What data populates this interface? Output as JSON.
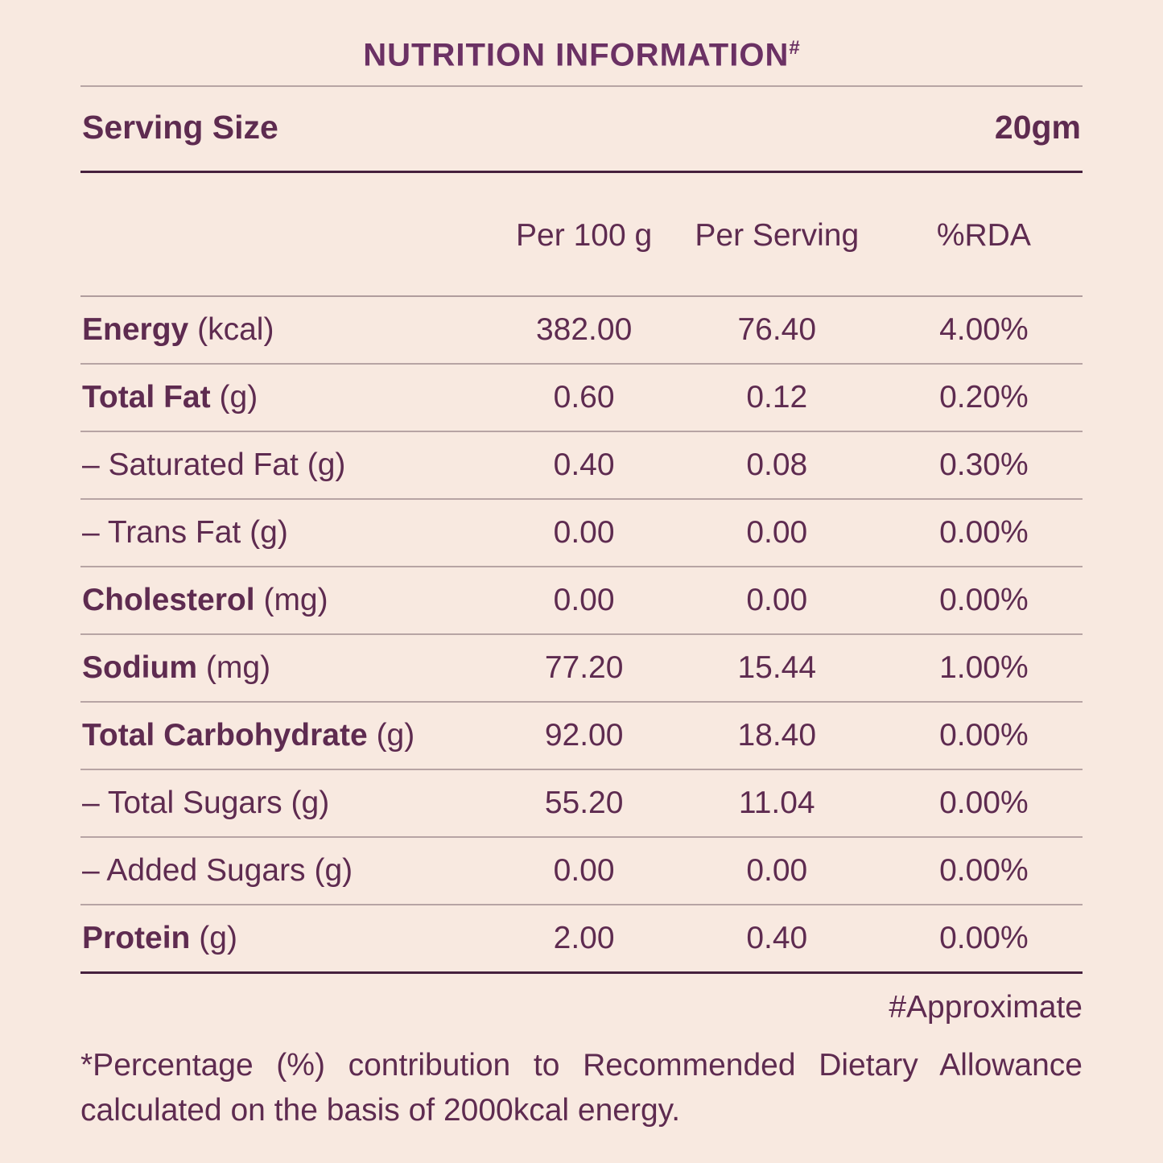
{
  "colors": {
    "background": "#f8e9e0",
    "text": "#5e2b50",
    "title": "#6b3164",
    "rule_thin": "#b7a4a4",
    "rule_dark": "#46203e"
  },
  "title": {
    "text": "NUTRITION INFORMATION",
    "superscript": "#"
  },
  "serving": {
    "label": "Serving Size",
    "value": "20gm"
  },
  "columns": [
    "Per 100 g",
    "Per Serving",
    "%RDA"
  ],
  "rows": [
    {
      "name": "Energy",
      "unit": "(kcal)",
      "per_100g": "382.00",
      "per_serving": "76.40",
      "rda": "4.00%"
    },
    {
      "name": "Total Fat",
      "unit": "(g)",
      "per_100g": "0.60",
      "per_serving": "0.12",
      "rda": "0.20%"
    },
    {
      "name": "– Saturated Fat",
      "unit": "(g)",
      "per_100g": "0.40",
      "per_serving": "0.08",
      "rda": "0.30%"
    },
    {
      "name": "– Trans Fat",
      "unit": "(g)",
      "per_100g": "0.00",
      "per_serving": "0.00",
      "rda": "0.00%"
    },
    {
      "name": "Cholesterol",
      "unit": "(mg)",
      "per_100g": "0.00",
      "per_serving": "0.00",
      "rda": "0.00%"
    },
    {
      "name": "Sodium",
      "unit": "(mg)",
      "per_100g": "77.20",
      "per_serving": "15.44",
      "rda": "1.00%"
    },
    {
      "name": "Total Carbohydrate",
      "unit": "(g)",
      "per_100g": "92.00",
      "per_serving": "18.40",
      "rda": "0.00%"
    },
    {
      "name": "– Total Sugars",
      "unit": "(g)",
      "per_100g": "55.20",
      "per_serving": "11.04",
      "rda": "0.00%"
    },
    {
      "name": "– Added Sugars",
      "unit": "(g)",
      "per_100g": "0.00",
      "per_serving": "0.00",
      "rda": "0.00%"
    },
    {
      "name": "Protein",
      "unit": "(g)",
      "per_100g": "2.00",
      "per_serving": "0.40",
      "rda": "0.00%"
    }
  ],
  "footnotes": {
    "approximate": "#Approximate",
    "rda_note": "*Percentage (%) contribution to Recommended Dietary Allowance calculated on the basis of 2000kcal energy."
  }
}
